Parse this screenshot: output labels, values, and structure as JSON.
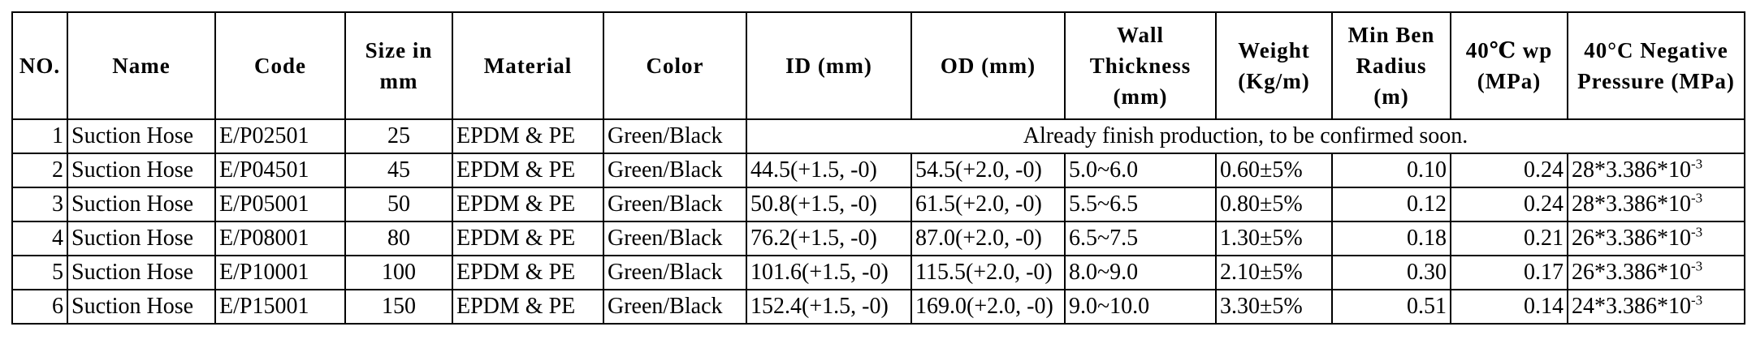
{
  "headers": [
    "NO.",
    "Name",
    "Code",
    "Size in mm",
    "Material",
    "Color",
    "ID (mm)",
    "OD (mm)",
    "Wall Thickness (mm)",
    "Weight (Kg/m)",
    "Min Ben Radius (m)",
    "40℃ wp (MPa)",
    "40°C Negative Pressure (MPa)"
  ],
  "pending_note": "Already finish production, to be confirmed soon.",
  "rows": [
    {
      "no": "1",
      "name": "Suction Hose",
      "code": "E/P02501",
      "size": "25",
      "material": "EPDM & PE",
      "color": "Green/Black"
    },
    {
      "no": "2",
      "name": "Suction Hose",
      "code": "E/P04501",
      "size": "45",
      "material": "EPDM & PE",
      "color": "Green/Black",
      "id": "44.5(+1.5, -0)",
      "od": "54.5(+2.0, -0)",
      "wall": "5.0~6.0",
      "weight": "0.60±5%",
      "radius": "0.10",
      "wp": "0.24",
      "neg_base": "28*3.386*10",
      "neg_exp": "-3"
    },
    {
      "no": "3",
      "name": "Suction Hose",
      "code": "E/P05001",
      "size": "50",
      "material": "EPDM & PE",
      "color": "Green/Black",
      "id": "50.8(+1.5, -0)",
      "od": "61.5(+2.0, -0)",
      "wall": "5.5~6.5",
      "weight": "0.80±5%",
      "radius": "0.12",
      "wp": "0.24",
      "neg_base": "28*3.386*10",
      "neg_exp": "-3"
    },
    {
      "no": "4",
      "name": "Suction Hose",
      "code": "E/P08001",
      "size": "80",
      "material": "EPDM & PE",
      "color": "Green/Black",
      "id": "76.2(+1.5, -0)",
      "od": "87.0(+2.0, -0)",
      "wall": "6.5~7.5",
      "weight": "1.30±5%",
      "radius": "0.18",
      "wp": "0.21",
      "neg_base": "26*3.386*10",
      "neg_exp": "-3"
    },
    {
      "no": "5",
      "name": "Suction Hose",
      "code": "E/P10001",
      "size": "100",
      "material": "EPDM & PE",
      "color": "Green/Black",
      "id": "101.6(+1.5, -0)",
      "od": "115.5(+2.0, -0)",
      "wall": "8.0~9.0",
      "weight": "2.10±5%",
      "radius": "0.30",
      "wp": "0.17",
      "neg_base": "26*3.386*10",
      "neg_exp": "-3"
    },
    {
      "no": "6",
      "name": "Suction Hose",
      "code": "E/P15001",
      "size": "150",
      "material": "EPDM & PE",
      "color": "Green/Black",
      "id": "152.4(+1.5, -0)",
      "od": "169.0(+2.0, -0)",
      "wall": "9.0~10.0",
      "weight": "3.30±5%",
      "radius": "0.51",
      "wp": "0.14",
      "neg_base": "24*3.386*10",
      "neg_exp": "-3"
    }
  ]
}
